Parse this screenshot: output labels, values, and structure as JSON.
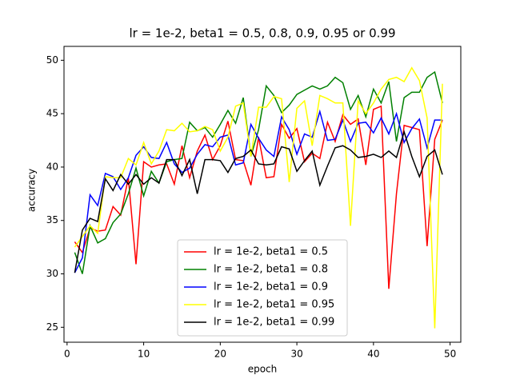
{
  "chart_data": {
    "type": "line",
    "title": "lr = 1e-2, beta1 = 0.5, 0.8, 0.9, 0.95 or 0.99",
    "x_label": "epoch",
    "y_label": "accuracy",
    "x": [
      1,
      2,
      3,
      4,
      5,
      6,
      7,
      8,
      9,
      10,
      11,
      12,
      13,
      14,
      15,
      16,
      17,
      18,
      19,
      20,
      21,
      22,
      23,
      24,
      25,
      26,
      27,
      28,
      29,
      30,
      31,
      32,
      33,
      34,
      35,
      36,
      37,
      38,
      39,
      40,
      41,
      42,
      43,
      44,
      45,
      46,
      47,
      48,
      49
    ],
    "series": [
      {
        "name": "lr = 1e-2, beta1 = 0.5",
        "color": "#ff0000",
        "values": [
          33,
          32,
          34.3,
          34,
          34.1,
          36.3,
          35.5,
          39,
          30.9,
          40.5,
          40,
          40.2,
          40.3,
          38.4,
          42,
          39,
          41.5,
          43,
          40.7,
          42,
          44.3,
          40.7,
          40.6,
          38.3,
          42.8,
          39,
          39.1,
          44,
          42.7,
          43.6,
          40.5,
          41.3,
          40.8,
          44.2,
          42.4,
          44.9,
          44,
          44.5,
          40.2,
          45.4,
          45.7,
          28.6,
          37.5,
          43.9,
          43.7,
          43.5,
          32.6,
          42.6,
          44.4
        ]
      },
      {
        "name": "lr = 1e-2, beta1 = 0.8",
        "color": "#008000",
        "values": [
          32,
          30,
          34.5,
          32.9,
          33.3,
          34.8,
          35.6,
          37.5,
          39.9,
          37.3,
          39.6,
          38.5,
          40.5,
          40.7,
          40.8,
          44.2,
          43.4,
          43.7,
          42.8,
          44,
          45.3,
          44.1,
          46.5,
          41,
          43.5,
          47.6,
          46.7,
          45.1,
          45.8,
          46.8,
          47.2,
          47.6,
          47.3,
          47.6,
          48.4,
          47.9,
          45.4,
          46.7,
          44.7,
          47.3,
          46,
          48,
          42.4,
          46.5,
          47,
          47,
          48.4,
          48.9,
          46
        ]
      },
      {
        "name": "lr = 1e-2, beta1 = 0.9",
        "color": "#0000ff",
        "values": [
          30.1,
          31.5,
          37.4,
          36.4,
          39.4,
          39.1,
          37.9,
          39,
          41.1,
          41.9,
          40.9,
          40.8,
          42.3,
          40.3,
          39.5,
          39.9,
          41.2,
          42.1,
          41.9,
          42.8,
          43,
          40.2,
          40.4,
          44,
          42.7,
          41.6,
          41,
          44.7,
          43.5,
          41.2,
          43.1,
          42.8,
          45.2,
          42.5,
          42.6,
          44.4,
          42.4,
          44.1,
          44.2,
          43.2,
          44.6,
          43.1,
          45,
          42.3,
          43.6,
          44.5,
          41.8,
          44.4,
          44.4
        ]
      },
      {
        "name": "lr = 1e-2, beta1 = 0.95",
        "color": "#ffff00",
        "values": [
          32.5,
          33.5,
          34.5,
          33.8,
          39.1,
          39,
          39,
          40.8,
          40.2,
          42.3,
          40.3,
          41.5,
          43.5,
          43.4,
          44.1,
          43.3,
          43.4,
          43.8,
          43.5,
          41.5,
          42.8,
          45.7,
          46,
          41,
          45.6,
          45.6,
          46.6,
          46.4,
          38.6,
          45.5,
          46.2,
          42,
          46.7,
          46.4,
          46,
          46,
          34.5,
          46.2,
          45,
          46,
          47.3,
          48.2,
          48.4,
          48,
          49.3,
          48.1,
          44.6,
          24.9,
          47.8
        ]
      },
      {
        "name": "lr = 1e-2, beta1 = 0.99",
        "color": "#000000",
        "values": [
          30.1,
          34.1,
          35.2,
          34.9,
          38.9,
          37.8,
          39.3,
          38.4,
          39.3,
          38.4,
          39,
          38.5,
          40.7,
          40.7,
          39.2,
          40.7,
          37.5,
          40.7,
          40.7,
          40.6,
          39.5,
          40.8,
          41,
          41.6,
          40.3,
          40.2,
          40.3,
          41.9,
          41.7,
          39.6,
          40.6,
          41.5,
          38.3,
          40.1,
          41.8,
          42,
          41.6,
          40.9,
          41,
          41.2,
          40.9,
          41.5,
          40.9,
          43.3,
          41,
          39.1,
          41,
          41.6,
          39.3
        ]
      }
    ],
    "xlim": [
      -0.4,
      51.4
    ],
    "ylim": [
      23.6,
      51.3
    ],
    "xticks": [
      0,
      10,
      20,
      30,
      40,
      50
    ],
    "yticks": [
      25,
      30,
      35,
      40,
      45,
      50
    ],
    "legend": "lower center"
  }
}
